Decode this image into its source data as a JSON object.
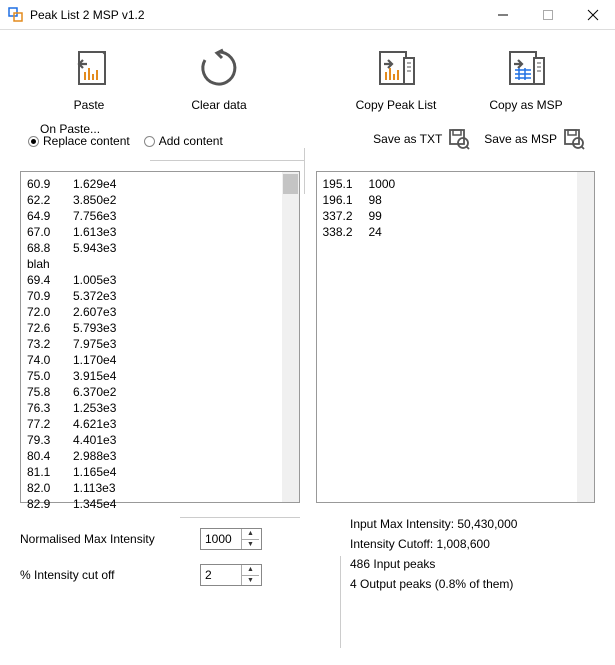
{
  "window": {
    "title": "Peak List 2 MSP v1.2"
  },
  "toolbar": {
    "paste": "Paste",
    "clear": "Clear data",
    "copy_peak": "Copy Peak List",
    "copy_msp": "Copy as MSP"
  },
  "onpaste": {
    "legend": "On Paste...",
    "replace": "Replace content",
    "add": "Add content",
    "selected": "replace"
  },
  "save": {
    "txt": "Save as TXT",
    "msp": "Save as MSP"
  },
  "left_data": "60.9\t1.629e4\n62.2\t3.850e2\n64.9\t7.756e3\n67.0\t1.613e3\n68.8\t5.943e3\nblah\n69.4\t1.005e3\n70.9\t5.372e3\n72.0\t2.607e3\n72.6\t5.793e3\n73.2\t7.975e3\n74.0\t1.170e4\n75.0\t3.915e4\n75.8\t6.370e2\n76.3\t1.253e3\n77.2\t4.621e3\n79.3\t4.401e3\n80.4\t2.988e3\n81.1\t1.165e4\n82.0\t1.113e3\n82.9\t1.345e4",
  "right_data": "195.1\t1000\n196.1\t98\n337.2\t99\n338.2\t24",
  "fields": {
    "norm_label": "Normalised Max Intensity",
    "norm_value": "1000",
    "cutoff_label": "% Intensity cut off",
    "cutoff_value": "2"
  },
  "stats": {
    "l1": "Input Max Intensity: 50,430,000",
    "l2": "Intensity Cutoff: 1,008,600",
    "l3": "486 Input peaks",
    "l4": "4 Output peaks  (0.8% of them)"
  },
  "colors": {
    "accent_orange": "#e38b1e",
    "accent_blue": "#1e6fe3",
    "icon_stroke": "#555555"
  }
}
